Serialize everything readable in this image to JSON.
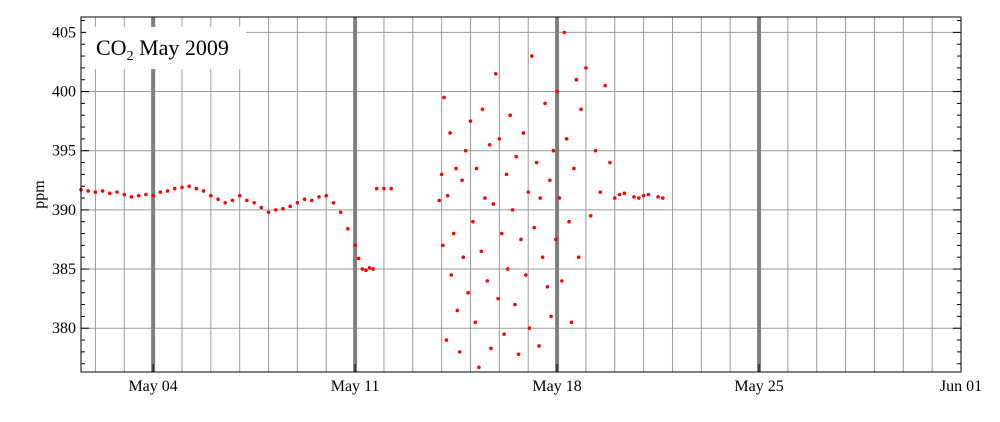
{
  "chart_data": {
    "type": "scatter",
    "title": "CO2 May 2009",
    "title_main": "CO",
    "title_sub": "2",
    "title_rest": " May 2009",
    "xlabel": "",
    "ylabel": "ppm",
    "x_axis": "date (days)",
    "xlim": [
      "2009-05-01T12:00",
      "2009-06-01"
    ],
    "ylim": [
      376.3,
      406.3
    ],
    "grid": true,
    "legend": "none",
    "marker_color": "#ff0000",
    "y_ticks": [
      380,
      385,
      390,
      395,
      400,
      405
    ],
    "x_ticks": [
      {
        "date": "2009-05-04",
        "label": "May 04"
      },
      {
        "date": "2009-05-11",
        "label": "May 11"
      },
      {
        "date": "2009-05-18",
        "label": "May 18"
      },
      {
        "date": "2009-05-25",
        "label": "May 25"
      },
      {
        "date": "2009-06-01",
        "label": "Jun 01"
      }
    ],
    "vertical_grid": "daily",
    "week_markers": [
      "2009-05-04",
      "2009-05-11",
      "2009-05-18",
      "2009-05-25"
    ],
    "series": [
      {
        "name": "",
        "x": [
          "2009-05-01T12:00",
          "2009-05-01T18:00",
          "2009-05-02T00:00",
          "2009-05-02T06:00",
          "2009-05-02T12:00",
          "2009-05-02T18:00",
          "2009-05-03T00:00",
          "2009-05-03T06:00",
          "2009-05-03T12:00",
          "2009-05-03T18:00",
          "2009-05-04T00:00",
          "2009-05-04T06:00",
          "2009-05-04T12:00",
          "2009-05-04T18:00",
          "2009-05-05T00:00",
          "2009-05-05T06:00",
          "2009-05-05T12:00",
          "2009-05-05T18:00",
          "2009-05-06T00:00",
          "2009-05-06T06:00",
          "2009-05-06T12:00",
          "2009-05-06T18:00",
          "2009-05-07T00:00",
          "2009-05-07T06:00",
          "2009-05-07T12:00",
          "2009-05-07T18:00",
          "2009-05-08T00:00",
          "2009-05-08T06:00",
          "2009-05-08T12:00",
          "2009-05-08T18:00",
          "2009-05-09T00:00",
          "2009-05-09T06:00",
          "2009-05-09T12:00",
          "2009-05-09T18:00",
          "2009-05-10T00:00",
          "2009-05-10T06:00",
          "2009-05-10T12:00",
          "2009-05-10T18:00",
          "2009-05-11T00:00",
          "2009-05-11T03:00",
          "2009-05-11T06:00",
          "2009-05-11T09:00",
          "2009-05-11T12:00",
          "2009-05-11T15:00",
          "2009-05-11T18:00",
          "2009-05-12T00:00",
          "2009-05-12T06:00",
          "2009-05-13T22:00",
          "2009-05-14T00:00",
          "2009-05-14T01:00",
          "2009-05-14T02:00",
          "2009-05-14T04:00",
          "2009-05-14T05:00",
          "2009-05-14T07:00",
          "2009-05-14T08:00",
          "2009-05-14T10:00",
          "2009-05-14T12:00",
          "2009-05-14T13:00",
          "2009-05-14T15:00",
          "2009-05-14T17:00",
          "2009-05-14T18:00",
          "2009-05-14T20:00",
          "2009-05-14T22:00",
          "2009-05-15T00:00",
          "2009-05-15T02:00",
          "2009-05-15T04:00",
          "2009-05-15T05:00",
          "2009-05-15T07:00",
          "2009-05-15T09:00",
          "2009-05-15T10:00",
          "2009-05-15T12:00",
          "2009-05-15T14:00",
          "2009-05-15T16:00",
          "2009-05-15T17:00",
          "2009-05-15T19:00",
          "2009-05-15T21:00",
          "2009-05-15T23:00",
          "2009-05-16T00:00",
          "2009-05-16T02:00",
          "2009-05-16T04:00",
          "2009-05-16T06:00",
          "2009-05-16T07:00",
          "2009-05-16T09:00",
          "2009-05-16T11:00",
          "2009-05-16T13:00",
          "2009-05-16T14:00",
          "2009-05-16T16:00",
          "2009-05-16T18:00",
          "2009-05-16T20:00",
          "2009-05-16T22:00",
          "2009-05-17T00:00",
          "2009-05-17T01:00",
          "2009-05-17T03:00",
          "2009-05-17T05:00",
          "2009-05-17T07:00",
          "2009-05-17T09:00",
          "2009-05-17T10:00",
          "2009-05-17T12:00",
          "2009-05-17T14:00",
          "2009-05-17T16:00",
          "2009-05-17T18:00",
          "2009-05-17T19:00",
          "2009-05-17T21:00",
          "2009-05-17T23:00",
          "2009-05-18T00:00",
          "2009-05-18T02:00",
          "2009-05-18T04:00",
          "2009-05-18T06:00",
          "2009-05-18T08:00",
          "2009-05-18T10:00",
          "2009-05-18T12:00",
          "2009-05-18T14:00",
          "2009-05-18T16:00",
          "2009-05-18T18:00",
          "2009-05-18T20:00",
          "2009-05-19T00:00",
          "2009-05-19T04:00",
          "2009-05-19T08:00",
          "2009-05-19T12:00",
          "2009-05-19T16:00",
          "2009-05-19T20:00",
          "2009-05-20T00:00",
          "2009-05-20T04:00",
          "2009-05-20T08:00",
          "2009-05-20T16:00",
          "2009-05-20T20:00",
          "2009-05-21T00:00",
          "2009-05-21T04:00",
          "2009-05-21T12:00",
          "2009-05-21T16:00"
        ],
        "y": [
          391.7,
          391.6,
          391.5,
          391.6,
          391.4,
          391.5,
          391.3,
          391.1,
          391.2,
          391.3,
          391.2,
          391.5,
          391.6,
          391.8,
          391.9,
          392.0,
          391.8,
          391.6,
          391.2,
          390.9,
          390.6,
          390.8,
          391.2,
          390.8,
          390.6,
          390.2,
          389.8,
          390.0,
          390.1,
          390.3,
          390.6,
          390.9,
          390.8,
          391.1,
          391.2,
          390.6,
          389.8,
          388.4,
          387.0,
          385.9,
          385.0,
          384.9,
          385.1,
          385.0,
          391.8,
          391.8,
          391.8,
          390.8,
          393.0,
          387.0,
          399.5,
          379.0,
          391.2,
          396.5,
          384.5,
          388.0,
          393.5,
          381.5,
          378.0,
          392.5,
          386.0,
          395.0,
          383.0,
          397.5,
          389.0,
          380.5,
          393.5,
          376.7,
          386.5,
          398.5,
          391.0,
          384.0,
          395.5,
          378.3,
          390.5,
          401.5,
          382.5,
          396.0,
          388.0,
          379.5,
          393.0,
          385.0,
          398.0,
          390.0,
          382.0,
          394.5,
          377.8,
          387.5,
          396.5,
          384.5,
          391.5,
          380.0,
          403.0,
          388.5,
          394.0,
          378.5,
          391.0,
          386.0,
          399.0,
          383.5,
          392.5,
          381.0,
          395.0,
          387.5,
          400.0,
          391.0,
          384.0,
          405.0,
          396.0,
          389.0,
          380.5,
          393.5,
          401.0,
          386.0,
          398.5,
          402.0,
          389.5,
          395.0,
          391.5,
          400.5,
          394.0,
          391.0,
          391.3,
          391.4,
          391.1,
          391.0,
          391.2,
          391.3,
          391.1,
          391.0
        ]
      }
    ]
  }
}
